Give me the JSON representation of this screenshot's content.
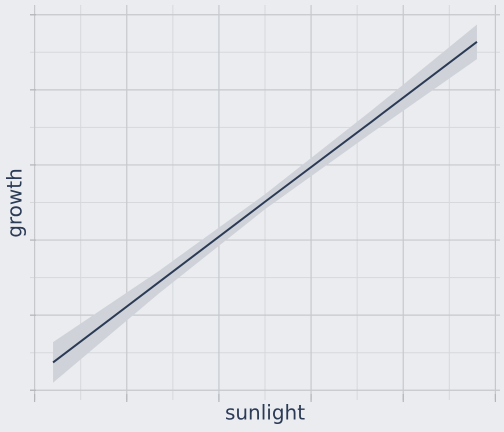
{
  "chart_data": {
    "type": "line",
    "xlabel": "sunlight",
    "ylabel": "growth",
    "x": [
      0.2,
      1.35,
      2.5,
      3.65,
      4.8
    ],
    "series": [
      {
        "color": "#2b3a55",
        "band_color": "#cfd3d9",
        "values": [
          0.37,
          1.44,
          2.51,
          3.57,
          4.64
        ],
        "lower": [
          0.1,
          1.29,
          2.41,
          3.42,
          4.41
        ],
        "upper": [
          0.64,
          1.59,
          2.61,
          3.72,
          4.87
        ]
      }
    ],
    "xlim": [
      -0.05,
      5.05
    ],
    "ylim": [
      -0.13,
      5.13
    ],
    "xticks": [
      0,
      1,
      2,
      3,
      4,
      5
    ],
    "yticks": [
      0,
      1,
      2,
      3,
      4,
      5
    ],
    "xminor": [
      0.5,
      1.5,
      2.5,
      3.5,
      4.5
    ],
    "yminor": [
      0.5,
      1.5,
      2.5,
      3.5,
      4.5
    ],
    "grid": true
  }
}
